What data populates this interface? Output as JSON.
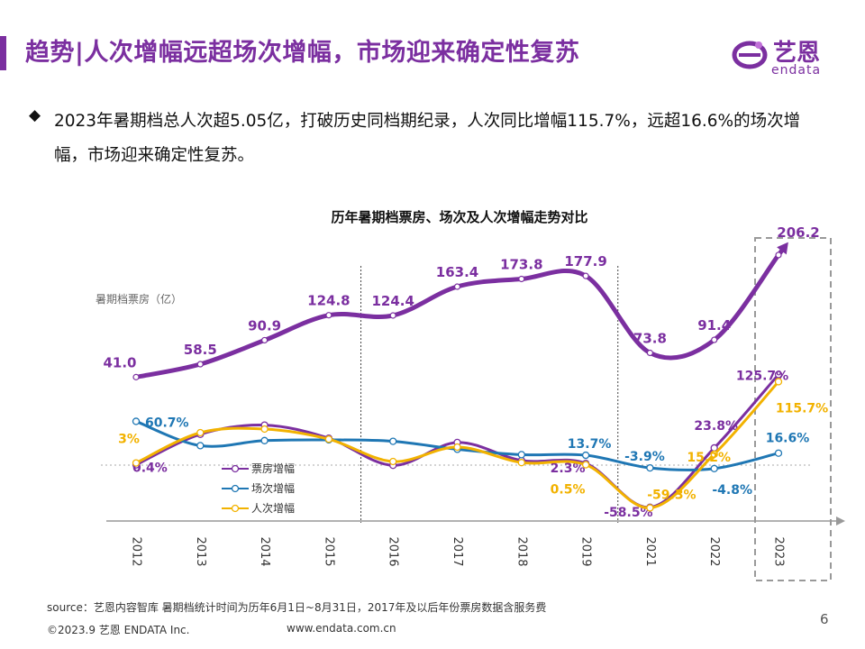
{
  "header": {
    "title": "趋势|人次增幅远超场次增幅，市场迎来确定性复苏",
    "accent_color": "#7b2fa0"
  },
  "logo": {
    "cn": "艺恩",
    "en": "endata"
  },
  "bullet": {
    "icon": "diamond-bullet-icon",
    "text": "2023年暑期档总人次超5.05亿，打破历史同档期纪录，人次同比增幅115.7%，远超16.6%的场次增幅，市场迎来确定性复苏。"
  },
  "chart_data": {
    "type": "line",
    "title": "历年暑期档票房、场次及人次增幅走势对比",
    "categories": [
      "2012",
      "2013",
      "2014",
      "2015",
      "2016",
      "2017",
      "2018",
      "2019",
      "2021",
      "2022",
      "2023"
    ],
    "box_office": {
      "name": "暑期档票房（亿）",
      "values": [
        41.0,
        58.5,
        90.9,
        124.8,
        124.4,
        163.4,
        173.8,
        177.9,
        73.8,
        91.4,
        206.2
      ],
      "labels": [
        "41.0",
        "58.5",
        "90.9",
        "124.8",
        "124.4",
        "163.4",
        "173.8",
        "177.9",
        "73.8",
        "91.4",
        "206.2"
      ],
      "color": "#7b2fa0"
    },
    "series": [
      {
        "name": "票房增幅",
        "color": "#7b2fa0",
        "values": [
          0.4,
          42.7,
          55.5,
          37.3,
          -0.3,
          31.4,
          6.4,
          2.3,
          -58.5,
          23.8,
          125.7
        ],
        "labels": [
          "0.4%",
          "",
          "",
          "",
          "",
          "",
          "",
          "2.3%",
          "-58.5%",
          "23.8%",
          "125.7%"
        ]
      },
      {
        "name": "场次增幅",
        "color": "#1f77b4",
        "values": [
          60.7,
          27.0,
          34.0,
          35.0,
          33.0,
          22.0,
          14.5,
          13.7,
          -3.9,
          -4.8,
          16.6
        ],
        "labels": [
          "60.7%",
          "",
          "",
          "",
          "",
          "",
          "",
          "13.7%",
          "-3.9%",
          "-4.8%",
          "16.6%"
        ]
      },
      {
        "name": "人次增幅",
        "color": "#f2b200",
        "values": [
          3.0,
          45.0,
          50.0,
          36.0,
          5.0,
          25.0,
          3.5,
          0.5,
          -59.3,
          15.2,
          115.7
        ],
        "labels": [
          "3%",
          "",
          "",
          "",
          "",
          "",
          "",
          "0.5%",
          "-59.3%",
          "15.2%",
          "115.7%"
        ]
      }
    ],
    "legend": "left-center",
    "highlight_category": "2023"
  },
  "footer": {
    "source": "source：艺恩内容智库    暑期档统计时间为历年6月1日~8月31日，2017年及以后年份票房数据含服务费",
    "copyright": "©2023.9 艺恩 ENDATA Inc.",
    "url": "www.endata.com.cn",
    "page_number": "6"
  }
}
